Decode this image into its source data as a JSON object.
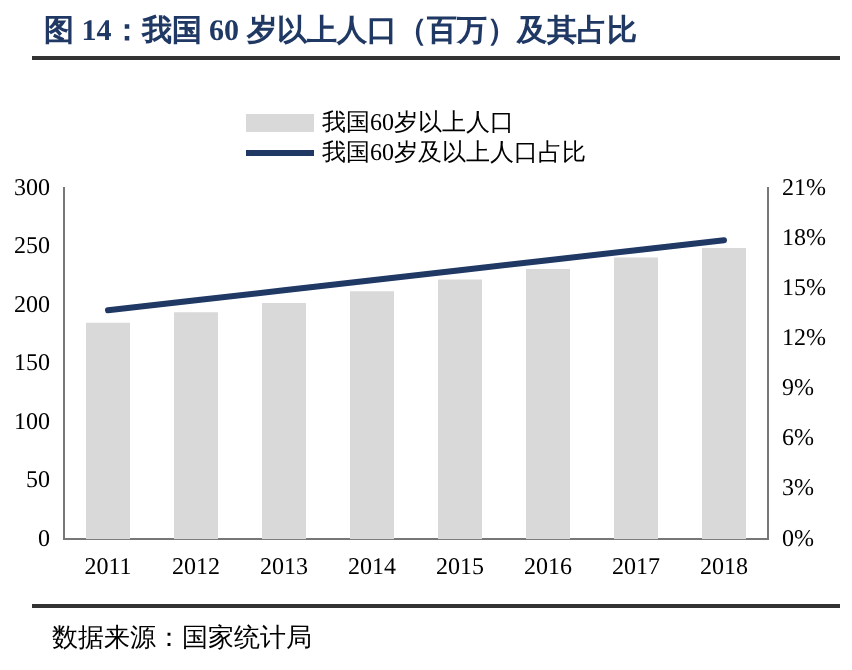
{
  "chart_data": {
    "type": "bar",
    "title": "图 14：我国 60 岁以上人口（百万）及其占比",
    "categories": [
      "2011",
      "2012",
      "2013",
      "2014",
      "2015",
      "2016",
      "2017",
      "2018"
    ],
    "series": [
      {
        "name": "我国60岁以上人口",
        "color": "#d9d9d9",
        "values": [
          185,
          194,
          202,
          212,
          222,
          231,
          241,
          249
        ]
      },
      {
        "name": "我国60岁及以上人口占比",
        "type": "line",
        "axis": "y2",
        "color": "#1f3864",
        "values": [
          13.7,
          14.3,
          14.9,
          15.5,
          16.1,
          16.7,
          17.3,
          17.9
        ]
      }
    ],
    "ylim": [
      0,
      300
    ],
    "yticks": [
      0,
      50,
      100,
      150,
      200,
      250,
      300
    ],
    "y2lim": [
      0,
      21
    ],
    "y2ticks": [
      {
        "value": 0,
        "label": "0%"
      },
      {
        "value": 3,
        "label": "3%"
      },
      {
        "value": 6,
        "label": "6%"
      },
      {
        "value": 9,
        "label": "9%"
      },
      {
        "value": 12,
        "label": "12%"
      },
      {
        "value": 15,
        "label": "15%"
      },
      {
        "value": 18,
        "label": "18%"
      },
      {
        "value": 21,
        "label": "21%"
      }
    ],
    "legend": "top",
    "marker": "none",
    "annotations": [
      "数据来源：国家统计局"
    ]
  }
}
